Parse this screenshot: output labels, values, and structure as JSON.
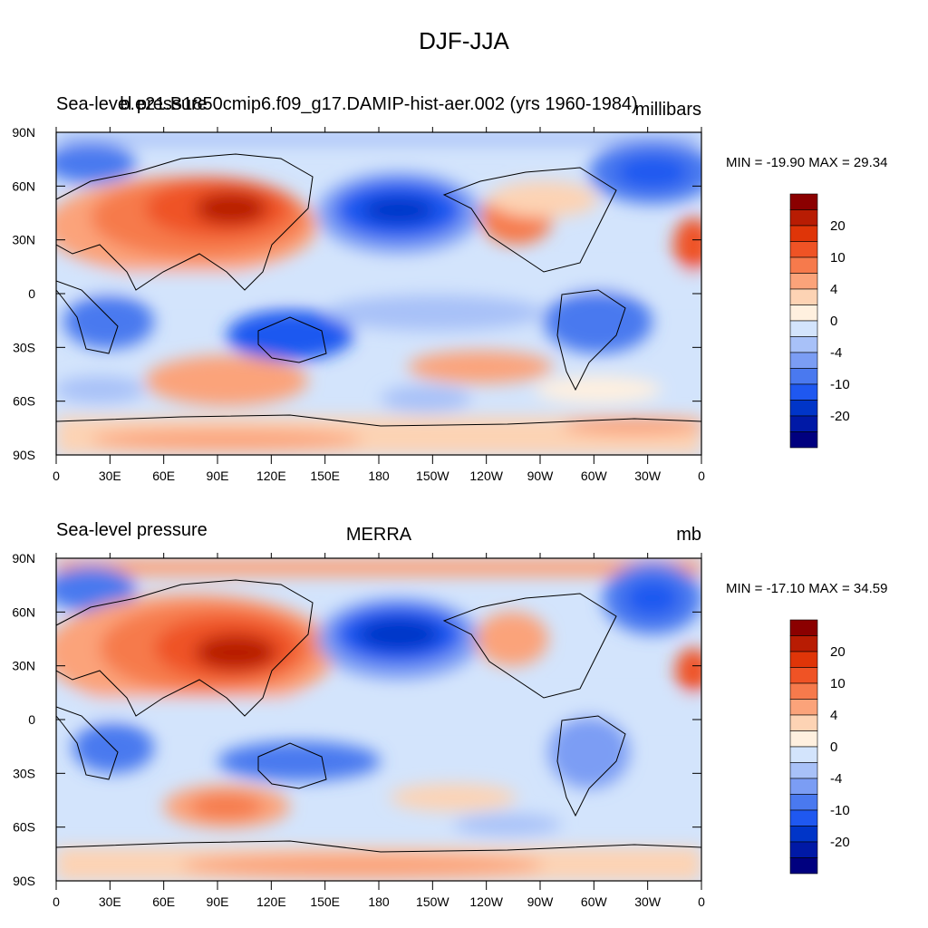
{
  "main_title": "DJF-JJA",
  "colors": {
    "levels": [
      "#00007f",
      "#0019a6",
      "#0035c8",
      "#1f58f0",
      "#4a79ef",
      "#7b9df4",
      "#a8c1f8",
      "#d3e4fc",
      "#fff0df",
      "#fdd3b4",
      "#fba37a",
      "#f67a4c",
      "#ef5325",
      "#df3508",
      "#b81c03",
      "#8b0000"
    ]
  },
  "panels": [
    {
      "id": "top",
      "title_left": "Sea-level pressure",
      "title_center": "b.e21.B1850cmip6.f09_g17.DAMIP-hist-aer.002 (yrs 1960-1984)",
      "title_right": "millibars",
      "stats": "MIN = -19.90 MAX =  29.34",
      "colorbar_labels": [
        "20",
        "10",
        "4",
        "0",
        "-4",
        "-10",
        "-20"
      ]
    },
    {
      "id": "bottom",
      "title_left": "Sea-level pressure",
      "title_center": "MERRA",
      "title_right": "mb",
      "stats": "MIN = -17.10 MAX =  34.59",
      "colorbar_labels": [
        "20",
        "10",
        "4",
        "0",
        "-4",
        "-10",
        "-20"
      ]
    }
  ],
  "axes": {
    "lat_labels": [
      "90N",
      "60N",
      "30N",
      "0",
      "30S",
      "60S",
      "90S"
    ],
    "lon_labels": [
      "0",
      "30E",
      "60E",
      "90E",
      "120E",
      "150E",
      "180",
      "150W",
      "120W",
      "90W",
      "60W",
      "30W",
      "0"
    ]
  }
}
